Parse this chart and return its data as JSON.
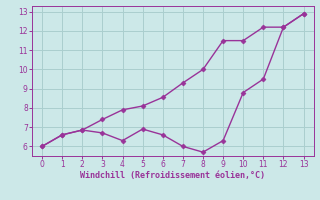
{
  "x": [
    0,
    1,
    2,
    3,
    4,
    5,
    6,
    7,
    8,
    9,
    10,
    11,
    12,
    13
  ],
  "line1": [
    6.0,
    6.6,
    6.85,
    7.4,
    7.9,
    8.1,
    8.55,
    9.3,
    10.0,
    11.5,
    11.5,
    12.2,
    12.2,
    12.9
  ],
  "line2": [
    6.0,
    6.6,
    6.85,
    6.7,
    6.3,
    6.9,
    6.6,
    6.0,
    5.7,
    6.3,
    8.8,
    9.5,
    12.2,
    12.9
  ],
  "color": "#993399",
  "bg_color": "#cce8e8",
  "grid_color": "#aacece",
  "xlabel": "Windchill (Refroidissement éolien,°C)",
  "xlabel_color": "#993399",
  "tick_color": "#993399",
  "xlim": [
    -0.5,
    13.5
  ],
  "ylim": [
    5.5,
    13.3
  ],
  "yticks": [
    6,
    7,
    8,
    9,
    10,
    11,
    12,
    13
  ],
  "xticks": [
    0,
    1,
    2,
    3,
    4,
    5,
    6,
    7,
    8,
    9,
    10,
    11,
    12,
    13
  ],
  "marker": "D",
  "markersize": 2.5,
  "linewidth": 1.0
}
